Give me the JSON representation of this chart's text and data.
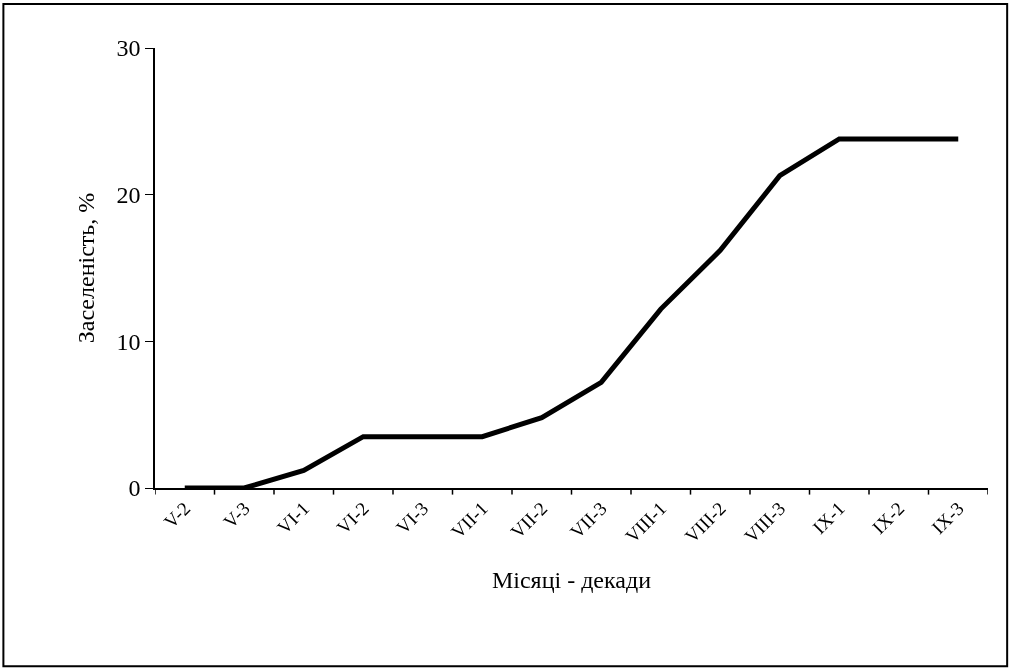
{
  "chart_data": {
    "type": "line",
    "xlabel": "Місяці - декади",
    "ylabel": "Заселеність, %",
    "categories": [
      "V-2",
      "V-3",
      "VI-1",
      "VI-2",
      "VI-3",
      "VII-1",
      "VII-2",
      "VII-3",
      "VIII-1",
      "VIII-2",
      "VIII-3",
      "IX-1",
      "IX-2",
      "IX-3"
    ],
    "series": [
      {
        "color": "#000000",
        "values": [
          0,
          0,
          1.2,
          3.5,
          3.5,
          3.5,
          4.8,
          7.2,
          12.2,
          16.2,
          21.3,
          23.8,
          23.8,
          23.8
        ]
      }
    ],
    "ylim": [
      0,
      30
    ],
    "yticks": [
      0,
      10,
      20,
      30
    ],
    "marker": "none",
    "line_style": "solid"
  }
}
